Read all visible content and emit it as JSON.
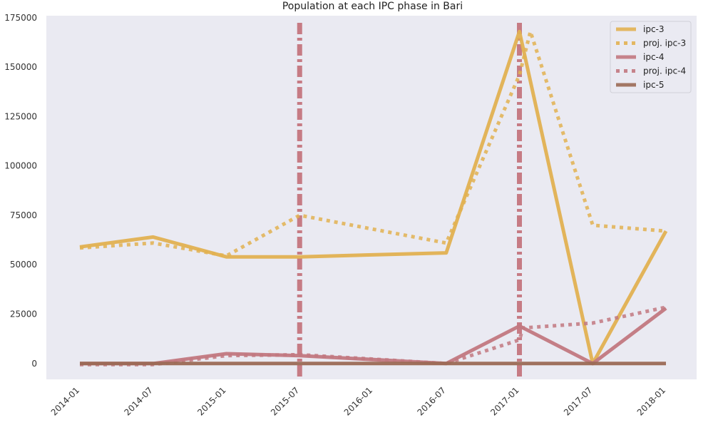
{
  "chart_data": {
    "type": "line",
    "title": "Population at each IPC phase in Bari",
    "xlabel": "",
    "ylabel": "",
    "x": [
      "2014-01",
      "2014-07",
      "2015-01",
      "2015-07",
      "2016-01",
      "2016-07",
      "2017-01",
      "2017-07",
      "2018-01"
    ],
    "ylim": [
      -8000,
      176000
    ],
    "yticks": [
      0,
      25000,
      50000,
      75000,
      100000,
      125000,
      150000,
      175000
    ],
    "grid": false,
    "legend_position": "top-right",
    "series": [
      {
        "name": "ipc-3",
        "style": "solid",
        "color": "#e2b151",
        "points": [
          [
            0,
            59000
          ],
          [
            1,
            64000
          ],
          [
            2,
            54000
          ],
          [
            3,
            54000
          ],
          [
            5,
            56000
          ],
          [
            6,
            168000
          ],
          [
            7,
            0
          ],
          [
            8,
            67000
          ]
        ]
      },
      {
        "name": "proj. ipc-3",
        "style": "dotted",
        "color": "#e2b151",
        "points": [
          [
            0,
            58500
          ],
          [
            1,
            61000
          ],
          [
            2,
            54500
          ],
          [
            3,
            75000
          ],
          [
            5,
            61000
          ],
          [
            6,
            146000
          ],
          [
            6.15,
            168000
          ],
          [
            7,
            70000
          ],
          [
            8,
            67000
          ]
        ]
      },
      {
        "name": "ipc-4",
        "style": "solid",
        "color": "#c27880",
        "points": [
          [
            0,
            0
          ],
          [
            1,
            0
          ],
          [
            2,
            5000
          ],
          [
            3,
            4000
          ],
          [
            5,
            0
          ],
          [
            6,
            19000
          ],
          [
            7,
            0
          ],
          [
            8,
            28000
          ]
        ]
      },
      {
        "name": "proj. ipc-4",
        "style": "dotted",
        "color": "#c27880",
        "points": [
          [
            0,
            -500
          ],
          [
            1,
            -500
          ],
          [
            2,
            4000
          ],
          [
            3,
            4500
          ],
          [
            5,
            0
          ],
          [
            6,
            12000
          ],
          [
            6.05,
            18000
          ],
          [
            7,
            20500
          ],
          [
            8,
            28500
          ]
        ]
      },
      {
        "name": "ipc-5",
        "style": "solid",
        "color": "#9b6a55",
        "points": [
          [
            0,
            0
          ],
          [
            1,
            0
          ],
          [
            2,
            0
          ],
          [
            3,
            0
          ],
          [
            4,
            0
          ],
          [
            5,
            0
          ],
          [
            6,
            0
          ],
          [
            7,
            0
          ],
          [
            8,
            0
          ]
        ]
      }
    ],
    "vlines": [
      {
        "x": 3,
        "style": "dashdot",
        "color": "#b9555f"
      },
      {
        "x": 6,
        "style": "dashdot",
        "color": "#b9555f"
      }
    ]
  }
}
